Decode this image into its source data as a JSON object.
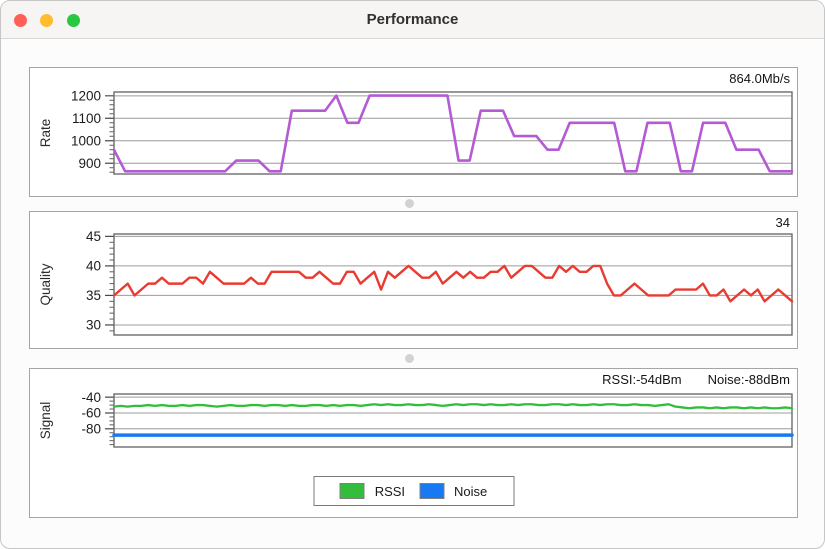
{
  "window": {
    "title": "Performance"
  },
  "panels": {
    "rate": {
      "axis_label": "Rate",
      "value_label": "864.0Mb/s"
    },
    "quality": {
      "axis_label": "Quality",
      "value_label": "34"
    },
    "signal": {
      "axis_label": "Signal",
      "rssi_label": "RSSI:-54dBm",
      "noise_label": "Noise:-88dBm"
    }
  },
  "legend": {
    "rssi": "RSSI",
    "noise": "Noise"
  },
  "colors": {
    "rate_line": "#b45ad4",
    "quality_line": "#e93b31",
    "rssi_line": "#33bd3c",
    "noise_line": "#187af2",
    "gridline": "#9c9c9c",
    "close_button": "#ff5f57",
    "minimize_button": "#febc2e",
    "zoom_button": "#28c840"
  },
  "chart_data": [
    {
      "type": "line",
      "title": "Rate",
      "ylabel": "Rate",
      "unit": "Mb/s",
      "current_value_label": "864.0Mb/s",
      "ylim": [
        852,
        1217
      ],
      "yticks": [
        900,
        1000,
        1100,
        1200
      ],
      "yminor": 20,
      "grid": true,
      "series": [
        {
          "name": "Rate",
          "color": "#b45ad4",
          "width": 2.6,
          "values": [
            960,
            864,
            864,
            864,
            864,
            864,
            864,
            864,
            864,
            864,
            864,
            912,
            912,
            912,
            864,
            864,
            1134,
            1134,
            1134,
            1134,
            1201,
            1080,
            1080,
            1201,
            1201,
            1201,
            1201,
            1201,
            1201,
            1201,
            1201,
            912,
            912,
            1134,
            1134,
            1134,
            1021,
            1021,
            1021,
            960,
            960,
            1080,
            1080,
            1080,
            1080,
            1080,
            864,
            864,
            1080,
            1080,
            1080,
            864,
            864,
            1080,
            1080,
            1080,
            960,
            960,
            960,
            864,
            864,
            864
          ]
        }
      ]
    },
    {
      "type": "line",
      "title": "Quality",
      "ylabel": "Quality",
      "current_value_label": "34",
      "ylim": [
        28.3,
        45.4
      ],
      "yticks": [
        30,
        35,
        40,
        45
      ],
      "yminor": 1,
      "grid": true,
      "series": [
        {
          "name": "Quality",
          "color": "#e93b31",
          "width": 2.4,
          "values": [
            35,
            36,
            37,
            35,
            36,
            37,
            37,
            38,
            37,
            37,
            37,
            38,
            38,
            37,
            39,
            38,
            37,
            37,
            37,
            37,
            38,
            37,
            37,
            39,
            39,
            39,
            39,
            39,
            38,
            38,
            39,
            38,
            37,
            37,
            39,
            39,
            37,
            38,
            39,
            36,
            39,
            38,
            39,
            40,
            39,
            38,
            38,
            39,
            37,
            38,
            39,
            38,
            39,
            38,
            38,
            39,
            39,
            40,
            38,
            39,
            40,
            40,
            39,
            38,
            38,
            40,
            39,
            40,
            39,
            39,
            40,
            40,
            37,
            35,
            35,
            36,
            37,
            36,
            35,
            35,
            35,
            35,
            36,
            36,
            36,
            36,
            37,
            35,
            35,
            36,
            34,
            35,
            36,
            35,
            36,
            34,
            35,
            36,
            35,
            34
          ]
        }
      ]
    },
    {
      "type": "line",
      "title": "Signal",
      "ylabel": "Signal",
      "unit": "dBm",
      "rssi_value_label": "RSSI:-54dBm",
      "noise_value_label": "Noise:-88dBm",
      "ylim": [
        -103,
        -36
      ],
      "yticks": [
        -40,
        -60,
        -80
      ],
      "yminor": 5,
      "grid": true,
      "legend_position": "bottom-center",
      "series": [
        {
          "name": "RSSI",
          "color": "#33bd3c",
          "width": 2.3,
          "values": [
            -52,
            -51,
            -52,
            -51,
            -51,
            -50,
            -51,
            -50,
            -51,
            -51,
            -50,
            -51,
            -50,
            -50,
            -51,
            -52,
            -51,
            -50,
            -51,
            -51,
            -50,
            -50,
            -51,
            -50,
            -50,
            -51,
            -50,
            -51,
            -51,
            -50,
            -50,
            -51,
            -50,
            -51,
            -50,
            -50,
            -51,
            -50,
            -49,
            -50,
            -49,
            -50,
            -50,
            -49,
            -50,
            -50,
            -49,
            -50,
            -51,
            -50,
            -49,
            -50,
            -49,
            -49,
            -50,
            -49,
            -50,
            -50,
            -49,
            -50,
            -49,
            -49,
            -50,
            -50,
            -49,
            -49,
            -50,
            -49,
            -50,
            -50,
            -49,
            -50,
            -49,
            -49,
            -50,
            -50,
            -49,
            -50,
            -50,
            -51,
            -50,
            -49,
            -52,
            -53,
            -54,
            -53,
            -53,
            -54,
            -53,
            -54,
            -53,
            -53,
            -54,
            -53,
            -54,
            -53,
            -54,
            -54,
            -53,
            -54
          ]
        },
        {
          "name": "Noise",
          "color": "#187af2",
          "width": 3.4,
          "values": [
            -88,
            -88
          ]
        }
      ]
    }
  ]
}
